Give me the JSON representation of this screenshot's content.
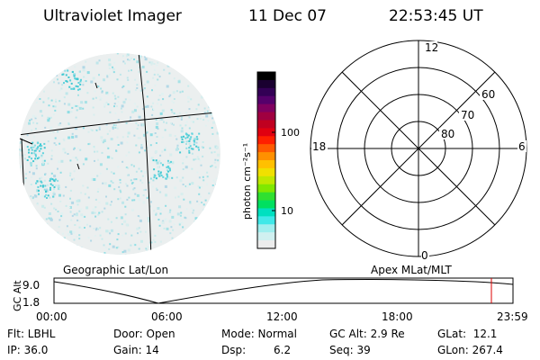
{
  "header": {
    "instrument": "Ultraviolet Imager",
    "date": "11 Dec 07",
    "time": "22:53:45 UT"
  },
  "colorbar": {
    "unit_label": "photon cm⁻²s⁻¹",
    "tick_labels": [
      "100",
      "10"
    ],
    "colors": [
      "#000000",
      "#1a0030",
      "#330055",
      "#55006b",
      "#800060",
      "#a00040",
      "#c00020",
      "#e00010",
      "#ff2000",
      "#ff5a00",
      "#ff9000",
      "#ffc000",
      "#f0e000",
      "#c0e800",
      "#80e800",
      "#30e030",
      "#00e060",
      "#00e0c0",
      "#40e8e8",
      "#a0eeee",
      "#d0f0f0",
      "#ececec"
    ]
  },
  "polar_plot": {
    "mlt_labels": {
      "top": "12",
      "left": "18",
      "right": "6",
      "bottom": "0"
    },
    "lat_labels": [
      "60",
      "70",
      "80"
    ]
  },
  "labels": {
    "geographic": "Geographic Lat/Lon",
    "apex": "Apex MLat/MLT"
  },
  "altitude_panel": {
    "axis_title": "GC Alt",
    "y_max_label": "9.0",
    "y_min_label": "1.8",
    "time_ticks": [
      "00:00",
      "06:00",
      "12:00",
      "18:00",
      "23:59"
    ],
    "current_time_marker_color": "#dd0000"
  },
  "info": {
    "flt": "Flt: LBHL",
    "ip": "IP: 36.0",
    "door": "Door: Open",
    "gain": "Gain: 14",
    "mode": "Mode: Normal",
    "dsp_label": "Dsp:",
    "dsp_value": "6.2",
    "gc_alt": "GC Alt: 2.9 Re",
    "seq": "Seq: 39",
    "glat": "GLat:  12.1",
    "glon": "GLon: 267.4"
  }
}
